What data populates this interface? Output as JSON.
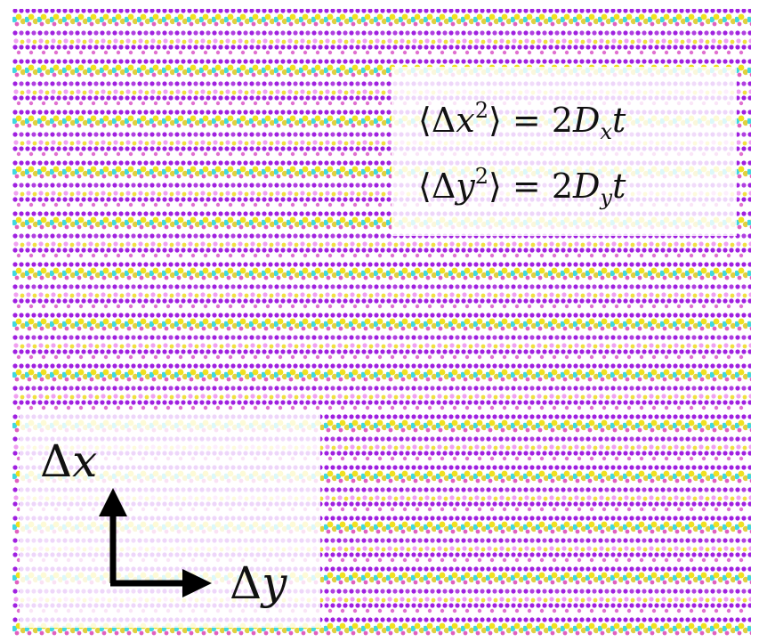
{
  "equations": [
    {
      "open": "⟨Δ",
      "var": "x",
      "power": "2",
      "close": "⟩ = 2",
      "coef": "D",
      "sub": "x",
      "time": "t"
    },
    {
      "open": "⟨Δ",
      "var": "y",
      "power": "2",
      "close": "⟩ = 2",
      "coef": "D",
      "sub": "y",
      "time": "t"
    }
  ],
  "axes": {
    "vertical": {
      "delta": "Δ",
      "var": "x"
    },
    "horizontal": {
      "delta": "Δ",
      "var": "y"
    }
  }
}
